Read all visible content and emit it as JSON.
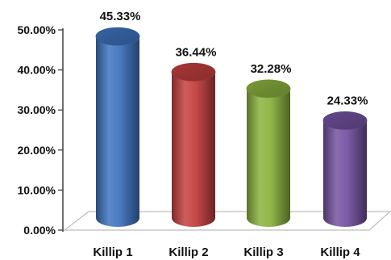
{
  "chart_data": {
    "type": "bar",
    "style": "3d-cylinder",
    "categories": [
      "Killip 1",
      "Killip 2",
      "Killip 3",
      "Killip 4"
    ],
    "values": [
      45.33,
      36.44,
      32.28,
      24.33
    ],
    "value_labels": [
      "45.33%",
      "36.44%",
      "32.28%",
      "24.33%"
    ],
    "colors": [
      "#3f74c0",
      "#c44040",
      "#8cb33f",
      "#7553a1"
    ],
    "ylim": [
      0,
      50
    ],
    "yticks": [
      0,
      10,
      20,
      30,
      40,
      50
    ],
    "ytick_labels": [
      "0.00%",
      "10.00%",
      "20.00%",
      "30.00%",
      "40.00%",
      "50.00%"
    ],
    "title": "",
    "xlabel": "",
    "ylabel": "",
    "grid": false,
    "legend": "none"
  }
}
